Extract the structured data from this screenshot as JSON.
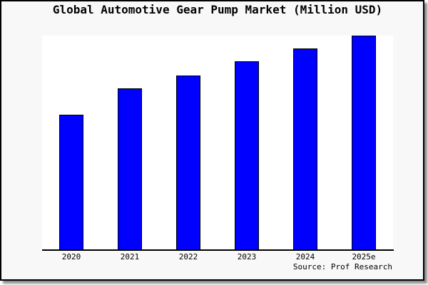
{
  "chart_data": {
    "type": "bar",
    "title": "Global Automotive Gear Pump Market (Million USD)",
    "categories": [
      "2020",
      "2021",
      "2022",
      "2023",
      "2024",
      "2025e"
    ],
    "values": [
      63,
      75.5,
      81.5,
      88,
      94,
      100
    ],
    "value_scale_note": "no y-axis ticks or gridlines shown; values are relative bar heights as % of tallest bar",
    "xlabel": "",
    "ylabel": "",
    "ylim": [
      0,
      100
    ],
    "grid": false,
    "legend": null,
    "bar_color": "#0000ff",
    "bar_edge_color": "#000000"
  },
  "source_credit": "Source: Prof Research",
  "colors": {
    "figure_bg": "#f8f8f8",
    "plot_bg": "#ffffff",
    "frame_border": "#000000",
    "text": "#000000"
  }
}
